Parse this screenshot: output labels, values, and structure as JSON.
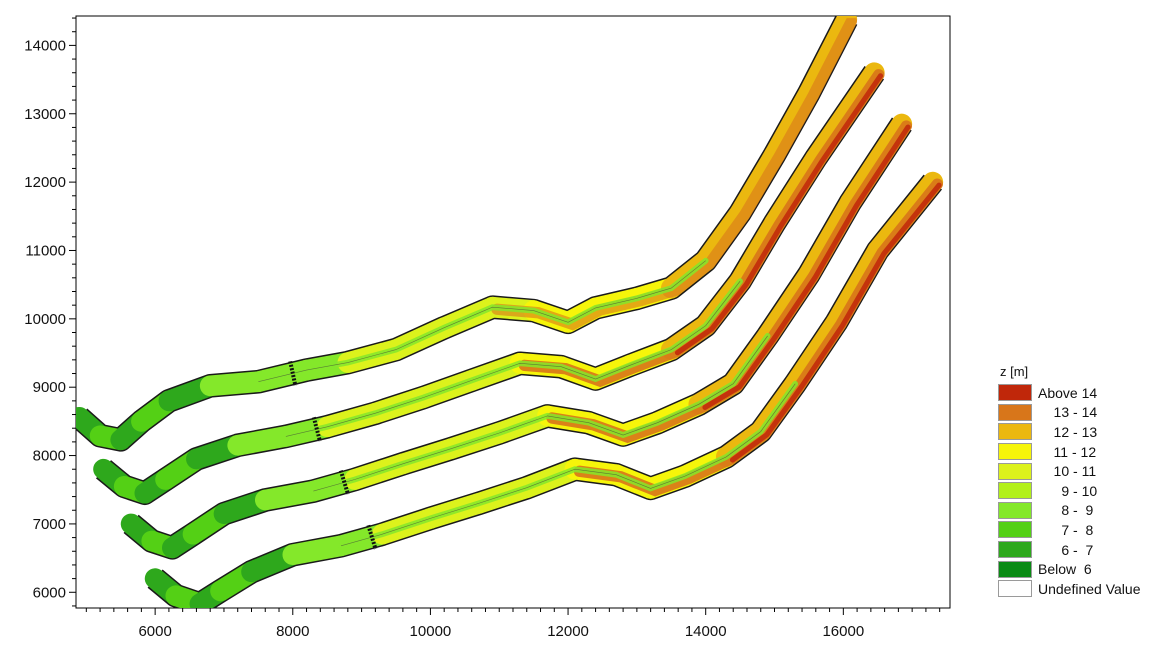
{
  "chart_data": {
    "type": "heatmap",
    "title": "",
    "xlabel": "",
    "ylabel": "",
    "xlim": [
      4850,
      17550
    ],
    "ylim": [
      5770,
      14430
    ],
    "x_ticks": [
      6000,
      8000,
      10000,
      12000,
      14000,
      16000
    ],
    "y_ticks": [
      6000,
      7000,
      8000,
      9000,
      10000,
      11000,
      12000,
      13000,
      14000
    ],
    "x_tick_labels": [
      "6000",
      "8000",
      "10000",
      "12000",
      "14000",
      "16000"
    ],
    "y_tick_labels": [
      "6000",
      "7000",
      "8000",
      "9000",
      "10000",
      "11000",
      "12000",
      "13000",
      "14000"
    ],
    "legend": {
      "title": "z [m]",
      "position": "right",
      "entries": [
        {
          "label": "Above 14",
          "color": "#c0270a"
        },
        {
          "label": "    13 - 14",
          "color": "#d8761a"
        },
        {
          "label": "    12 - 13",
          "color": "#ebb80f"
        },
        {
          "label": "    11 - 12",
          "color": "#f6f50a"
        },
        {
          "label": "    10 - 11",
          "color": "#dcf21c"
        },
        {
          "label": "      9 - 10",
          "color": "#b2f01a"
        },
        {
          "label": "      8 -  9",
          "color": "#84e82a"
        },
        {
          "label": "      7 -  8",
          "color": "#54d015"
        },
        {
          "label": "      6 -  7",
          "color": "#2ea81c"
        },
        {
          "label": "Below  6",
          "color": "#0a8a14"
        },
        {
          "label": "Undefined Value",
          "color": "#ffffff"
        }
      ]
    },
    "channels": [
      {
        "name": "",
        "centerline": [
          [
            4900,
            8560
          ],
          [
            5200,
            8290
          ],
          [
            5500,
            8230
          ],
          [
            5800,
            8500
          ],
          [
            6200,
            8800
          ],
          [
            6800,
            9020
          ],
          [
            7500,
            9080
          ],
          [
            8200,
            9250
          ],
          [
            8800,
            9360
          ],
          [
            9500,
            9550
          ],
          [
            10200,
            9870
          ],
          [
            10900,
            10170
          ],
          [
            11500,
            10120
          ],
          [
            12000,
            9950
          ],
          [
            12400,
            10160
          ],
          [
            13000,
            10300
          ],
          [
            13500,
            10450
          ],
          [
            14000,
            10850
          ],
          [
            14500,
            11550
          ],
          [
            15000,
            12400
          ],
          [
            15500,
            13300
          ],
          [
            16050,
            14380
          ]
        ],
        "width": 300,
        "marker_x": 8000
      },
      {
        "name": "",
        "centerline": [
          [
            5250,
            7800
          ],
          [
            5550,
            7550
          ],
          [
            5850,
            7450
          ],
          [
            6150,
            7650
          ],
          [
            6600,
            7950
          ],
          [
            7200,
            8150
          ],
          [
            7900,
            8280
          ],
          [
            8500,
            8420
          ],
          [
            9200,
            8620
          ],
          [
            9900,
            8850
          ],
          [
            10600,
            9100
          ],
          [
            11300,
            9350
          ],
          [
            11900,
            9300
          ],
          [
            12400,
            9120
          ],
          [
            12900,
            9320
          ],
          [
            13500,
            9550
          ],
          [
            14000,
            9900
          ],
          [
            14500,
            10550
          ],
          [
            15000,
            11400
          ],
          [
            15600,
            12350
          ],
          [
            16450,
            13600
          ]
        ],
        "width": 300,
        "marker_x": 8350
      },
      {
        "name": "",
        "centerline": [
          [
            5650,
            7000
          ],
          [
            5950,
            6750
          ],
          [
            6250,
            6650
          ],
          [
            6550,
            6850
          ],
          [
            7000,
            7150
          ],
          [
            7600,
            7350
          ],
          [
            8300,
            7480
          ],
          [
            8900,
            7650
          ],
          [
            9600,
            7880
          ],
          [
            10300,
            8100
          ],
          [
            11000,
            8330
          ],
          [
            11700,
            8580
          ],
          [
            12300,
            8480
          ],
          [
            12800,
            8300
          ],
          [
            13300,
            8480
          ],
          [
            13900,
            8750
          ],
          [
            14400,
            9050
          ],
          [
            14900,
            9750
          ],
          [
            15500,
            10650
          ],
          [
            16100,
            11700
          ],
          [
            16850,
            12850
          ]
        ],
        "width": 300,
        "marker_x": 8750
      },
      {
        "name": "",
        "centerline": [
          [
            6000,
            6200
          ],
          [
            6300,
            5950
          ],
          [
            6650,
            5830
          ],
          [
            6950,
            6020
          ],
          [
            7400,
            6300
          ],
          [
            8000,
            6550
          ],
          [
            8700,
            6680
          ],
          [
            9300,
            6850
          ],
          [
            10000,
            7080
          ],
          [
            10700,
            7300
          ],
          [
            11400,
            7530
          ],
          [
            12100,
            7800
          ],
          [
            12700,
            7720
          ],
          [
            13200,
            7520
          ],
          [
            13700,
            7700
          ],
          [
            14300,
            7980
          ],
          [
            14800,
            8350
          ],
          [
            15300,
            9050
          ],
          [
            15900,
            9950
          ],
          [
            16500,
            11000
          ],
          [
            17300,
            12000
          ]
        ],
        "width": 300,
        "marker_x": 9150
      }
    ]
  }
}
